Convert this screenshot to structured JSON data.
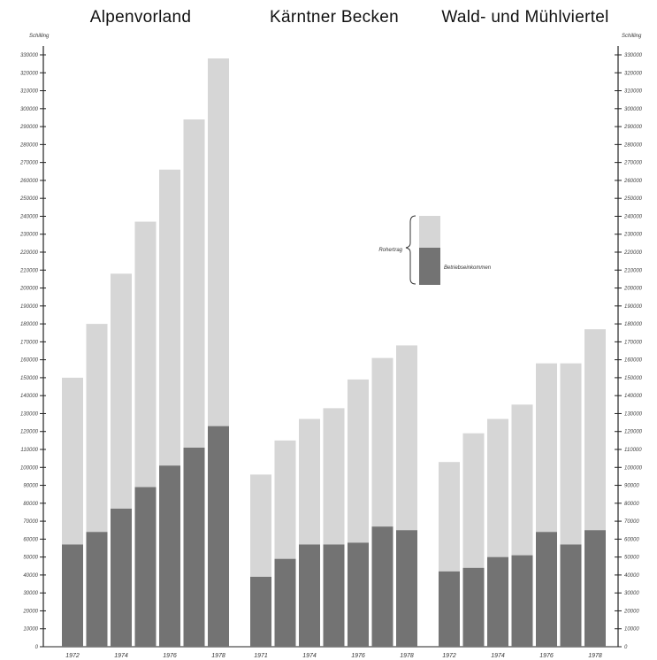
{
  "chart_data": {
    "type": "bar",
    "stacked": true,
    "unit_label": "Schilling",
    "ylim": [
      0,
      330000
    ],
    "y_ticks": [
      0,
      10000,
      20000,
      30000,
      40000,
      50000,
      60000,
      70000,
      80000,
      90000,
      100000,
      110000,
      120000,
      130000,
      140000,
      150000,
      160000,
      170000,
      180000,
      190000,
      200000,
      210000,
      220000,
      230000,
      240000,
      250000,
      260000,
      270000,
      280000,
      290000,
      300000,
      310000,
      320000,
      330000
    ],
    "legend": {
      "rohertrag": "Rohertrag",
      "betriebseinkommen": "Betriebseinkommen"
    },
    "colors": {
      "betriebseinkommen": "#737373",
      "rohertrag": "#d6d6d6"
    },
    "panels": [
      {
        "title": "Alpenvorland",
        "x_labels": [
          "1972",
          "1974",
          "1976",
          "1978"
        ],
        "bars": [
          {
            "total": 150000,
            "betriebseinkommen": 57000
          },
          {
            "total": 180000,
            "betriebseinkommen": 64000
          },
          {
            "total": 208000,
            "betriebseinkommen": 77000
          },
          {
            "total": 237000,
            "betriebseinkommen": 89000
          },
          {
            "total": 266000,
            "betriebseinkommen": 101000
          },
          {
            "total": 294000,
            "betriebseinkommen": 111000
          },
          {
            "total": 328000,
            "betriebseinkommen": 123000
          }
        ]
      },
      {
        "title": "Kärntner Becken",
        "x_labels": [
          "1971",
          "1974",
          "1976",
          "1978"
        ],
        "bars": [
          {
            "total": 96000,
            "betriebseinkommen": 39000
          },
          {
            "total": 115000,
            "betriebseinkommen": 49000
          },
          {
            "total": 127000,
            "betriebseinkommen": 57000
          },
          {
            "total": 133000,
            "betriebseinkommen": 57000
          },
          {
            "total": 149000,
            "betriebseinkommen": 58000
          },
          {
            "total": 161000,
            "betriebseinkommen": 67000
          },
          {
            "total": 168000,
            "betriebseinkommen": 65000
          }
        ]
      },
      {
        "title": "Wald- und Mühlviertel",
        "x_labels": [
          "1972",
          "1974",
          "1976",
          "1978"
        ],
        "bars": [
          {
            "total": 103000,
            "betriebseinkommen": 42000
          },
          {
            "total": 119000,
            "betriebseinkommen": 44000
          },
          {
            "total": 127000,
            "betriebseinkommen": 50000
          },
          {
            "total": 135000,
            "betriebseinkommen": 51000
          },
          {
            "total": 158000,
            "betriebseinkommen": 64000
          },
          {
            "total": 158000,
            "betriebseinkommen": 57000
          },
          {
            "total": 177000,
            "betriebseinkommen": 65000
          }
        ]
      }
    ]
  }
}
